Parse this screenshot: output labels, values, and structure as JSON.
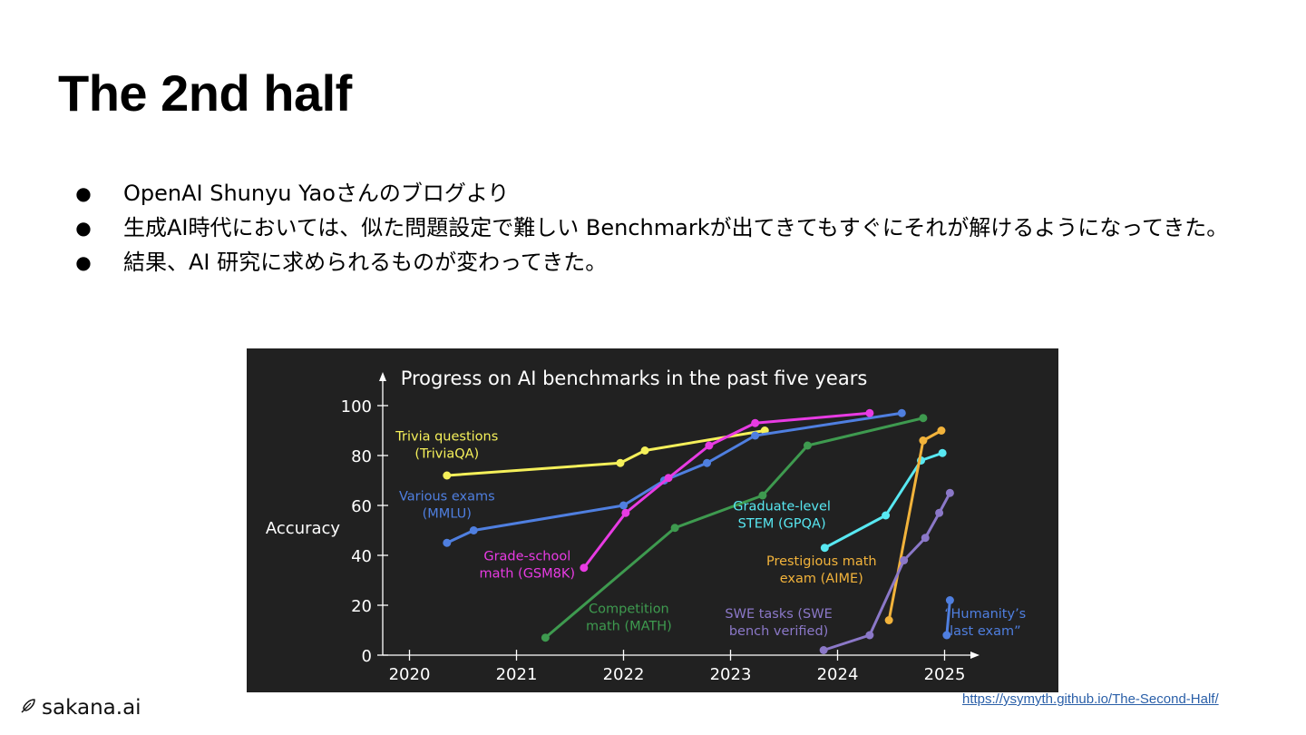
{
  "slide": {
    "title": "The 2nd half",
    "bullets": [
      "OpenAI Shunyu Yaoさんのブログより",
      "生成AI時代においては、似た問題設定で難しい Benchmarkが出てきてもすぐにそれが解けるようになってきた。",
      "結果、AI 研究に求められるものが変わってきた。"
    ],
    "bullet_marker": "●",
    "logo_text": "sakana.ai",
    "source_link": "https://ysymyth.github.io/The-Second-Half/"
  },
  "chart_data": {
    "type": "line",
    "title": "Progress on AI benchmarks in the past five years",
    "ylabel": "Accuracy",
    "xlabel": "",
    "xlim": [
      2019.75,
      2025.25
    ],
    "ylim": [
      0,
      100
    ],
    "x_ticks": [
      "2020",
      "2021",
      "2022",
      "2023",
      "2024",
      "2025"
    ],
    "y_ticks": [
      "0",
      "20",
      "40",
      "60",
      "80",
      "100"
    ],
    "background": "#212121",
    "axis_color": "#ffffff",
    "grid": false,
    "series": [
      {
        "name": "Trivia questions (TriviaQA)",
        "color": "#f5f05a",
        "x": [
          2020.35,
          2021.97,
          2022.2,
          2023.32
        ],
        "y": [
          72,
          77,
          82,
          90
        ]
      },
      {
        "name": "Various exams (MMLU)",
        "color": "#4f7fe0",
        "x": [
          2020.35,
          2020.6,
          2022.0,
          2022.38,
          2022.78,
          2023.23,
          2024.6
        ],
        "y": [
          45,
          50,
          60,
          70,
          77,
          88,
          97
        ]
      },
      {
        "name": "Grade-school math (GSM8K)",
        "color": "#e83be3",
        "x": [
          2021.63,
          2022.02,
          2022.42,
          2022.8,
          2023.23,
          2024.3
        ],
        "y": [
          35,
          57,
          71,
          84,
          93,
          97
        ]
      },
      {
        "name": "Competition math (MATH)",
        "color": "#3e9a4f",
        "x": [
          2021.27,
          2022.48,
          2023.3,
          2023.72,
          2024.8
        ],
        "y": [
          7,
          51,
          64,
          84,
          95
        ]
      },
      {
        "name": "Graduate-level STEM (GPQA)",
        "color": "#58e8f2",
        "x": [
          2023.88,
          2024.45,
          2024.78,
          2024.98
        ],
        "y": [
          43,
          56,
          78,
          81
        ]
      },
      {
        "name": "Prestigious math exam (AIME)",
        "color": "#f2b33b",
        "x": [
          2024.48,
          2024.8,
          2024.97
        ],
        "y": [
          14,
          86,
          90
        ]
      },
      {
        "name": "SWE tasks (SWE bench verified)",
        "color": "#8b78c8",
        "x": [
          2023.87,
          2024.3,
          2024.62,
          2024.82,
          2024.95,
          2025.05
        ],
        "y": [
          2,
          8,
          38,
          47,
          57,
          65
        ]
      },
      {
        "name": "“Humanity’s last exam”",
        "color": "#4f7fe0",
        "x": [
          2025.02,
          2025.05
        ],
        "y": [
          8,
          22
        ]
      }
    ],
    "annotations": [
      {
        "lines": [
          "Trivia questions",
          "(TriviaQA)"
        ],
        "color": "#f5f05a",
        "at": [
          2020.35,
          86
        ]
      },
      {
        "lines": [
          "Various exams",
          "(MMLU)"
        ],
        "color": "#4f7fe0",
        "at": [
          2020.35,
          62
        ]
      },
      {
        "lines": [
          "Grade-school",
          "math (GSM8K)"
        ],
        "color": "#e83be3",
        "at": [
          2021.1,
          38
        ]
      },
      {
        "lines": [
          "Competition",
          "math (MATH)"
        ],
        "color": "#3e9a4f",
        "at": [
          2022.05,
          17
        ]
      },
      {
        "lines": [
          "Graduate-level",
          "STEM (GPQA)"
        ],
        "color": "#58e8f2",
        "at": [
          2023.48,
          58
        ]
      },
      {
        "lines": [
          "Prestigious math",
          "exam (AIME)"
        ],
        "color": "#f2b33b",
        "at": [
          2023.85,
          36
        ]
      },
      {
        "lines": [
          "SWE tasks (SWE",
          "bench verified)"
        ],
        "color": "#8b78c8",
        "at": [
          2023.45,
          15
        ]
      },
      {
        "lines": [
          "“Humanity’s",
          "last exam”"
        ],
        "color": "#4f7fe0",
        "at": [
          2025.38,
          15
        ]
      }
    ]
  }
}
